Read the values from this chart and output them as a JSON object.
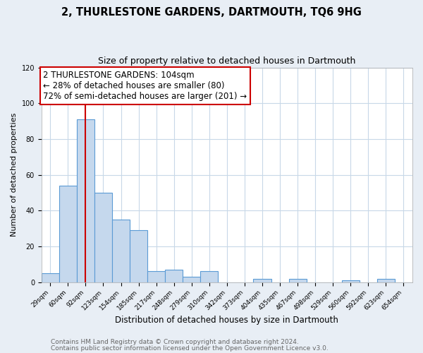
{
  "title": "2, THURLESTONE GARDENS, DARTMOUTH, TQ6 9HG",
  "subtitle": "Size of property relative to detached houses in Dartmouth",
  "xlabel": "Distribution of detached houses by size in Dartmouth",
  "ylabel": "Number of detached properties",
  "bar_labels": [
    "29sqm",
    "60sqm",
    "92sqm",
    "123sqm",
    "154sqm",
    "185sqm",
    "217sqm",
    "248sqm",
    "279sqm",
    "310sqm",
    "342sqm",
    "373sqm",
    "404sqm",
    "435sqm",
    "467sqm",
    "498sqm",
    "529sqm",
    "560sqm",
    "592sqm",
    "623sqm",
    "654sqm"
  ],
  "bar_values": [
    5,
    54,
    91,
    50,
    35,
    29,
    6,
    7,
    3,
    6,
    0,
    0,
    2,
    0,
    2,
    0,
    0,
    1,
    0,
    2,
    0
  ],
  "bar_color": "#c5d8ed",
  "bar_edge_color": "#5b9bd5",
  "vline_color": "#cc0000",
  "ylim": [
    0,
    120
  ],
  "yticks": [
    0,
    20,
    40,
    60,
    80,
    100,
    120
  ],
  "annotation_line1": "2 THURLESTONE GARDENS: 104sqm",
  "annotation_line2": "← 28% of detached houses are smaller (80)",
  "annotation_line3": "72% of semi-detached houses are larger (201) →",
  "footer_line1": "Contains HM Land Registry data © Crown copyright and database right 2024.",
  "footer_line2": "Contains public sector information licensed under the Open Government Licence v3.0.",
  "background_color": "#e8eef5",
  "plot_bg_color": "#ffffff",
  "grid_color": "#c8d8e8",
  "title_fontsize": 10.5,
  "subtitle_fontsize": 9,
  "xlabel_fontsize": 8.5,
  "ylabel_fontsize": 8,
  "footer_fontsize": 6.5,
  "annotation_fontsize": 8.5
}
